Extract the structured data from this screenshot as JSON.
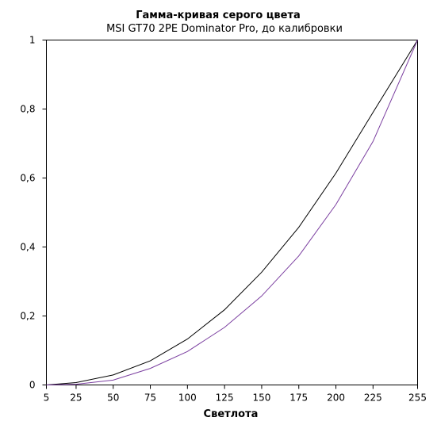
{
  "chart_data": {
    "type": "line",
    "title": "Гамма-кривая  серого цвета",
    "subtitle": "MSI GT70 2PE Dominator Pro, до калибровки",
    "xlabel": "Светлота",
    "ylabel": "",
    "x": [
      5,
      25,
      50,
      75,
      100,
      125,
      150,
      175,
      200,
      225,
      255
    ],
    "xlim": [
      5,
      255
    ],
    "ylim": [
      0,
      1
    ],
    "x_tick_labels": [
      "5",
      "25",
      "50",
      "75",
      "100",
      "125",
      "150",
      "175",
      "200",
      "225",
      "255"
    ],
    "y_tick_values": [
      0,
      0.2,
      0.4,
      0.6,
      0.8,
      1
    ],
    "y_tick_labels": [
      "0",
      "0,2",
      "0,4",
      "0,6",
      "0,8",
      "1"
    ],
    "grid": false,
    "legend": "none",
    "series": [
      {
        "color": "#000000",
        "values": [
          0.0,
          0.007,
          0.029,
          0.07,
          0.133,
          0.218,
          0.327,
          0.457,
          0.614,
          0.79,
          1.0
        ]
      },
      {
        "color": "#7b3fa0",
        "values": [
          0.0,
          0.002,
          0.014,
          0.048,
          0.097,
          0.167,
          0.258,
          0.374,
          0.523,
          0.706,
          1.0
        ]
      }
    ]
  }
}
